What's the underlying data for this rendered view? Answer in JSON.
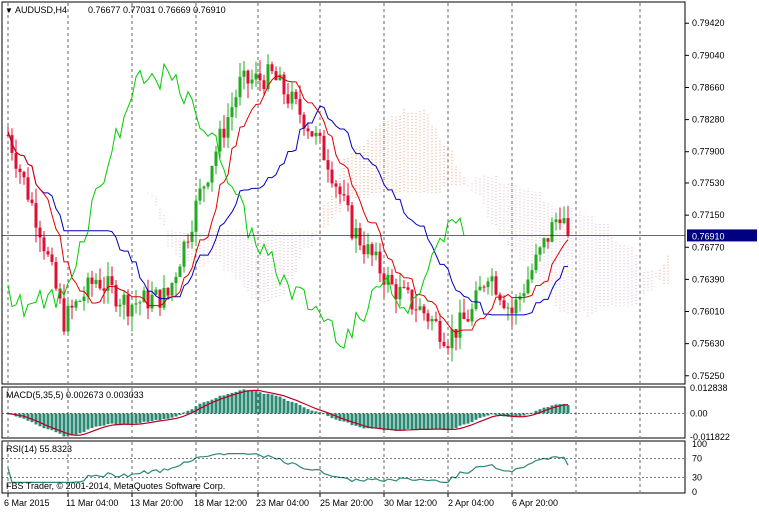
{
  "header": {
    "symbol_tf": "AUDUSD,H4",
    "ohlc": "0.76677 0.77031 0.76669 0.76910"
  },
  "colors": {
    "bull": "#22aa22",
    "bear": "#dd1133",
    "kijun": "#0000bb",
    "tenkan": "#dd0000",
    "chikou": "#00cc00",
    "cloud_a": "#e8824a",
    "cloud_b": "#d9a0c0",
    "macd_hist": "#2a8a74",
    "macd_signal": "#bb0022",
    "rsi": "#2a8a74",
    "grid": "#000000",
    "current_price": "#000080"
  },
  "price_axis": {
    "ticks": [
      "0.79420",
      "0.79040",
      "0.78660",
      "0.78280",
      "0.77900",
      "0.77530",
      "0.77150",
      "0.76770",
      "0.76390",
      "0.76010",
      "0.75630",
      "0.75250"
    ],
    "current_price_label": "0.76910"
  },
  "macd": {
    "label": "MACD(5,35,5) 0.002673 0.003033",
    "ticks": [
      "0.012838",
      "0.00",
      "-0.011822"
    ]
  },
  "rsi": {
    "label": "RSI(14) 55.8323",
    "ticks": [
      "100",
      "70",
      "30",
      "0"
    ]
  },
  "time_axis": {
    "labels": [
      "6 Mar 2015",
      "11 Mar 04:00",
      "13 Mar 20:00",
      "18 Mar 12:00",
      "23 Mar 04:00",
      "25 Mar 20:00",
      "30 Mar 12:00",
      "2 Apr 04:00",
      "6 Apr 20:00"
    ]
  },
  "footer": {
    "copyright": "FBS Trader, © 2001-2014, MetaQuotes Software Corp."
  },
  "chart_data": {
    "type": "candlestick",
    "symbol": "AUDUSD",
    "timeframe": "H4",
    "ylim": [
      0.752,
      0.796
    ],
    "price_anchors": [
      {
        "bar": 0,
        "price": 0.781
      },
      {
        "bar": 8,
        "price": 0.77
      },
      {
        "bar": 14,
        "price": 0.759
      },
      {
        "bar": 22,
        "price": 0.764
      },
      {
        "bar": 30,
        "price": 0.761
      },
      {
        "bar": 40,
        "price": 0.762
      },
      {
        "bar": 48,
        "price": 0.774
      },
      {
        "bar": 58,
        "price": 0.787
      },
      {
        "bar": 66,
        "price": 0.788
      },
      {
        "bar": 74,
        "price": 0.783
      },
      {
        "bar": 80,
        "price": 0.778
      },
      {
        "bar": 86,
        "price": 0.77
      },
      {
        "bar": 96,
        "price": 0.763
      },
      {
        "bar": 104,
        "price": 0.76
      },
      {
        "bar": 110,
        "price": 0.757
      },
      {
        "bar": 116,
        "price": 0.76
      },
      {
        "bar": 120,
        "price": 0.765
      },
      {
        "bar": 126,
        "price": 0.76
      },
      {
        "bar": 132,
        "price": 0.766
      },
      {
        "bar": 136,
        "price": 0.77
      },
      {
        "bar": 138,
        "price": 0.772
      },
      {
        "bar": 140,
        "price": 0.7691
      }
    ],
    "current_price": 0.7691,
    "macd": {
      "value": 0.002673,
      "signal": 0.003033,
      "ylim": [
        -0.011822,
        0.012838
      ]
    },
    "rsi": {
      "value": 55.8323,
      "levels": [
        70,
        30
      ],
      "ylim": [
        0,
        100
      ]
    }
  }
}
